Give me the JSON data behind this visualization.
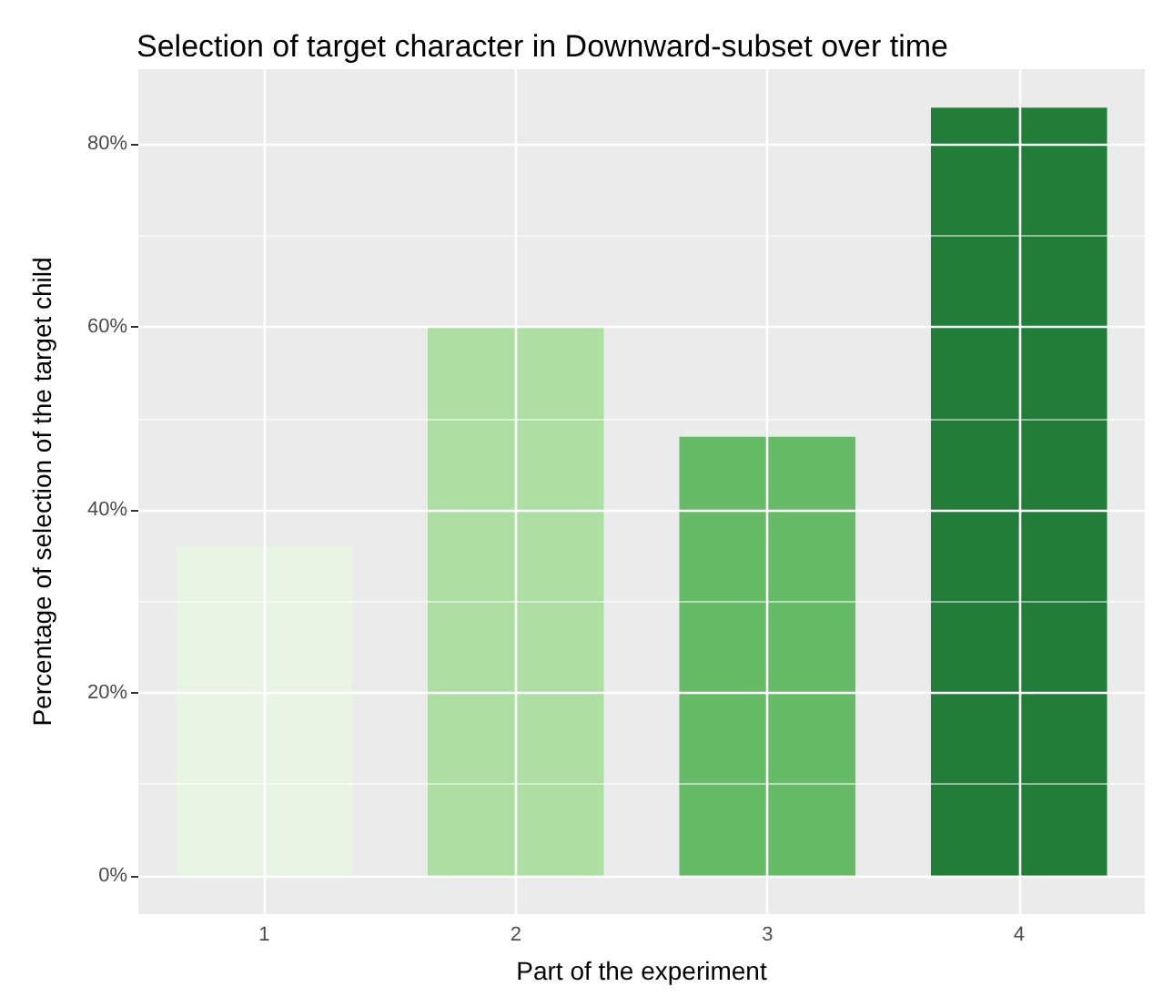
{
  "chart_data": {
    "type": "bar",
    "title": "Selection of target character in Downward-subset over time",
    "xlabel": "Part of the experiment",
    "ylabel": "Percentage of selection of the target child",
    "categories": [
      "1",
      "2",
      "3",
      "4"
    ],
    "values": [
      36,
      60,
      48,
      84
    ],
    "colors": [
      "#e8f5e4",
      "#addfa3",
      "#66bb66",
      "#217d38"
    ],
    "ylim": [
      -4.2,
      88.2
    ],
    "yticks": [
      {
        "value": 0,
        "label": "0%"
      },
      {
        "value": 20,
        "label": "20%"
      },
      {
        "value": 40,
        "label": "40%"
      },
      {
        "value": 60,
        "label": "60%"
      },
      {
        "value": 80,
        "label": "80%"
      }
    ],
    "grid": true
  }
}
